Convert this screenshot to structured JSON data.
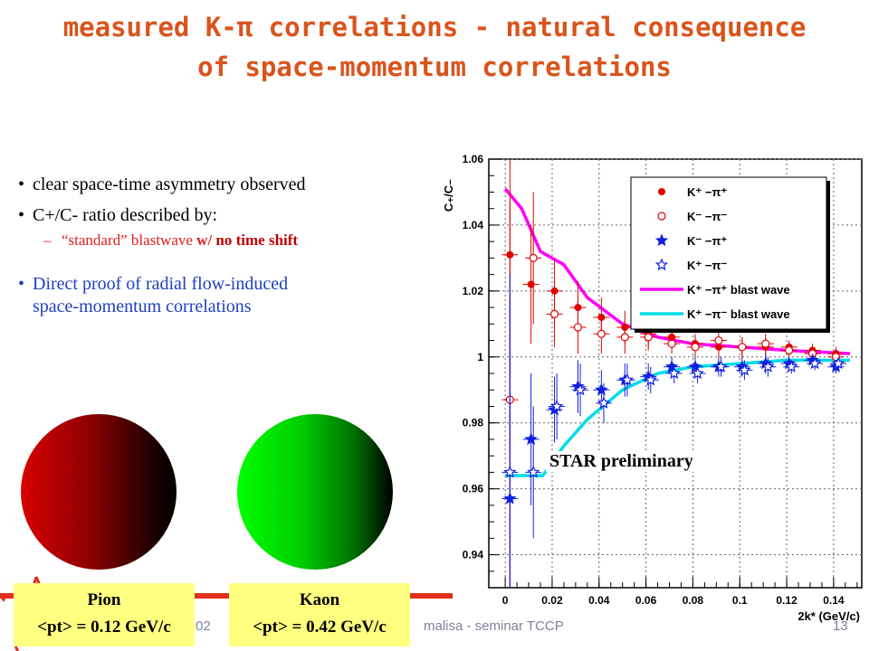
{
  "title": {
    "line1": "measured K-π correlations - natural consequence",
    "line2": "of space-momentum correlations"
  },
  "bullets": {
    "b1": "clear space-time asymmetry observed",
    "b2": "C+/C- ratio described by:",
    "sub_prefix": "“standard” blastwave ",
    "sub_bold_red": "w/",
    "sub_bold_dark": " no time shift",
    "b3_line1": "Direct proof of radial flow-induced",
    "b3_line2": "space-momentum correlations"
  },
  "labels": {
    "pion_name": "Pion",
    "pion_pt": "<pt> = 0.12 GeV/c",
    "kaon_name": "Kaon",
    "kaon_pt": "<pt> = 0.42 GeV/c"
  },
  "footer": {
    "left_fragment": "02",
    "middle_fragment": "malisa - seminar TCCP",
    "right_fragment": "13"
  },
  "colors": {
    "title": "#d9541c",
    "label_bg": "#ffff80",
    "pion_sphere": "#d80000",
    "kaon_sphere": "#00ff00"
  },
  "chart_data": {
    "type": "scatter",
    "ylabel": "C₊/C₋",
    "xlabel": "2k* (GeV/c)",
    "xlim": [
      -0.007,
      0.152
    ],
    "ylim": [
      0.93,
      1.06
    ],
    "xticks": [
      "0",
      "0.02",
      "0.04",
      "0.06",
      "0.08",
      "0.1",
      "0.12",
      "0.14"
    ],
    "yticks": [
      "0.94",
      "0.96",
      "0.98",
      "1",
      "1.02",
      "1.04",
      "1.06"
    ],
    "annotation": "STAR preliminary",
    "series": [
      {
        "name": "K⁺ −π⁺",
        "marker": "filled-circle",
        "color": "#e00000",
        "x": [
          0.002,
          0.011,
          0.021,
          0.031,
          0.041,
          0.051,
          0.061,
          0.071,
          0.081,
          0.091,
          0.101,
          0.111,
          0.121,
          0.131,
          0.141
        ],
        "y": [
          1.031,
          1.022,
          1.02,
          1.015,
          1.012,
          1.009,
          1.007,
          1.006,
          1.004,
          1.003,
          1.003,
          1.003,
          1.003,
          1.002,
          1.001
        ],
        "err": [
          0.06,
          0.018,
          0.01,
          0.008,
          0.006,
          0.005,
          0.004,
          0.003,
          0.003,
          0.003,
          0.003,
          0.003,
          0.002,
          0.002,
          0.002
        ]
      },
      {
        "name": "K⁻ −π⁻",
        "marker": "open-circle",
        "color": "#e00000",
        "x": [
          0.002,
          0.012,
          0.021,
          0.031,
          0.041,
          0.051,
          0.061,
          0.071,
          0.081,
          0.091,
          0.101,
          0.111,
          0.121,
          0.131,
          0.141
        ],
        "y": [
          0.987,
          1.03,
          1.013,
          1.009,
          1.007,
          1.006,
          1.006,
          1.004,
          1.003,
          1.005,
          1.003,
          1.004,
          1.002,
          1.001,
          1.0
        ],
        "err": [
          0.06,
          0.02,
          0.01,
          0.008,
          0.006,
          0.005,
          0.004,
          0.003,
          0.003,
          0.003,
          0.003,
          0.003,
          0.002,
          0.002,
          0.002
        ]
      },
      {
        "name": "K⁻ −π⁺",
        "marker": "filled-star",
        "color": "#1020e0",
        "x": [
          0.002,
          0.011,
          0.021,
          0.031,
          0.041,
          0.051,
          0.061,
          0.071,
          0.081,
          0.091,
          0.101,
          0.111,
          0.121,
          0.131,
          0.141
        ],
        "y": [
          0.957,
          0.975,
          0.984,
          0.991,
          0.99,
          0.993,
          0.994,
          0.997,
          0.997,
          0.997,
          0.997,
          0.998,
          0.998,
          0.999,
          0.997
        ],
        "err": [
          0.06,
          0.02,
          0.01,
          0.008,
          0.006,
          0.005,
          0.004,
          0.003,
          0.003,
          0.003,
          0.003,
          0.003,
          0.002,
          0.002,
          0.002
        ]
      },
      {
        "name": "K⁺ −π⁻",
        "marker": "open-star",
        "color": "#1020e0",
        "x": [
          0.002,
          0.012,
          0.022,
          0.032,
          0.042,
          0.052,
          0.062,
          0.072,
          0.082,
          0.092,
          0.102,
          0.112,
          0.122,
          0.132,
          0.142
        ],
        "y": [
          0.965,
          0.965,
          0.985,
          0.99,
          0.986,
          0.993,
          0.993,
          0.995,
          0.995,
          0.997,
          0.996,
          0.997,
          0.997,
          0.998,
          0.998
        ],
        "err": [
          0.06,
          0.02,
          0.01,
          0.008,
          0.006,
          0.005,
          0.004,
          0.003,
          0.003,
          0.003,
          0.003,
          0.003,
          0.002,
          0.002,
          0.002
        ]
      },
      {
        "name": "K⁺ −π⁺ blast wave",
        "marker": "line",
        "color": "#ff00ff",
        "x": [
          0.0,
          0.007,
          0.015,
          0.025,
          0.035,
          0.05,
          0.065,
          0.08,
          0.1,
          0.12,
          0.147
        ],
        "y": [
          1.051,
          1.045,
          1.032,
          1.028,
          1.018,
          1.01,
          1.006,
          1.004,
          1.003,
          1.002,
          1.001
        ]
      },
      {
        "name": "K⁺ −π⁻ blast wave",
        "marker": "line",
        "color": "#00dde6",
        "x": [
          0.0,
          0.007,
          0.016,
          0.025,
          0.035,
          0.05,
          0.065,
          0.08,
          0.1,
          0.12,
          0.147
        ],
        "y": [
          0.964,
          0.964,
          0.964,
          0.973,
          0.981,
          0.99,
          0.995,
          0.997,
          0.998,
          0.999,
          0.999
        ]
      }
    ]
  }
}
